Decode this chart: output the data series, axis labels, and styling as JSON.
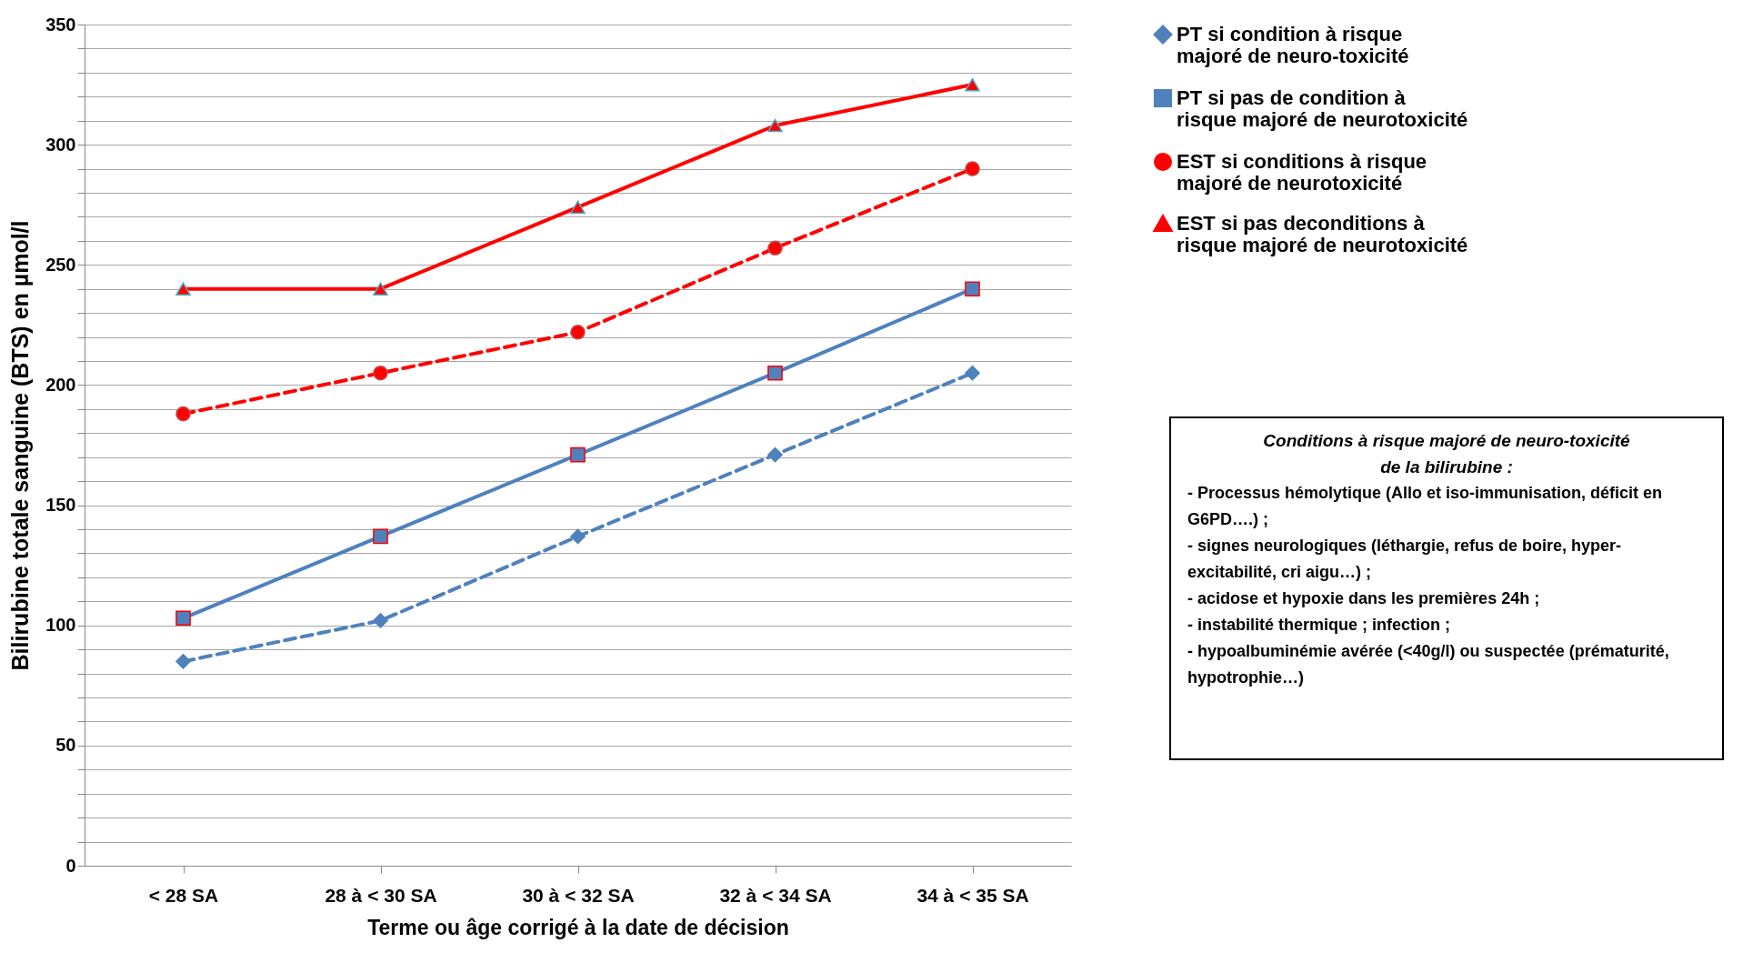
{
  "chart_data": {
    "type": "line",
    "xlabel": "Terme ou âge corrigé à la date de décision",
    "ylabel": "Bilirubine totale sanguine (BTS) en µmol/l",
    "categories": [
      "< 28 SA",
      "28 à < 30 SA",
      "30 à < 32 SA",
      "32 à < 34 SA",
      "34 à < 35 SA"
    ],
    "ylim": [
      0,
      350
    ],
    "yticks": [
      0,
      {
        "value": 10,
        "label": null
      },
      {
        "value": 20,
        "label": null
      },
      {
        "value": 30,
        "label": null
      },
      {
        "value": 40,
        "label": null
      },
      50,
      {
        "value": 60,
        "label": null
      },
      {
        "value": 70,
        "label": null
      },
      {
        "value": 80,
        "label": null
      },
      {
        "value": 90,
        "label": null
      },
      100,
      {
        "value": 110,
        "label": null
      },
      {
        "value": 120,
        "label": null
      },
      {
        "value": 130,
        "label": null
      },
      {
        "value": 140,
        "label": null
      },
      150,
      {
        "value": 160,
        "label": null
      },
      {
        "value": 170,
        "label": null
      },
      {
        "value": 180,
        "label": null
      },
      {
        "value": 190,
        "label": null
      },
      200,
      {
        "value": 210,
        "label": null
      },
      {
        "value": 220,
        "label": null
      },
      {
        "value": 230,
        "label": null
      },
      {
        "value": 240,
        "label": null
      },
      250,
      {
        "value": 260,
        "label": null
      },
      {
        "value": 270,
        "label": null
      },
      {
        "value": 280,
        "label": null
      },
      {
        "value": 290,
        "label": null
      },
      300,
      {
        "value": 310,
        "label": null
      },
      {
        "value": 320,
        "label": null
      },
      {
        "value": 330,
        "label": null
      },
      {
        "value": 340,
        "label": null
      },
      350
    ],
    "grid": "y",
    "legend": "right",
    "series": [
      {
        "name": "PT si condition à risque majoré de neuro-toxicité",
        "color": "#4f81bd",
        "marker": "diamond",
        "line_style": "dashed",
        "values": [
          85,
          102,
          137,
          171,
          205
        ]
      },
      {
        "name": "PT si pas de condition à risque majoré de neurotoxicité",
        "color": "#4f81bd",
        "marker": "square",
        "line_style": "solid",
        "values": [
          103,
          137,
          171,
          205,
          240
        ]
      },
      {
        "name": "EST si conditions à risque majoré de neurotoxicité",
        "color": "#ff0000",
        "marker": "circle",
        "line_style": "dashed",
        "values": [
          188,
          205,
          222,
          257,
          290
        ]
      },
      {
        "name": "EST si pas deconditions à risque majoré de neurotoxicité",
        "color": "#ff0000",
        "marker": "triangle",
        "line_style": "solid",
        "values": [
          240,
          240,
          274,
          308,
          325
        ]
      }
    ],
    "annotations": [
      "Conditions à risque majoré de neuro-toxicité de la bilirubine :",
      "- Processus hémolytique (Allo et iso-immunisation, déficit en G6PD….) ;",
      "- signes neurologiques (léthargie, refus de boire, hyper-excitabilité, cri aigu…) ;",
      "- acidose et hypoxie dans les premières 24h ;",
      "-  instabilité thermique ; infection ;",
      " - hypoalbuminémie avérée (<40g/l) ou suspectée (prématurité, hypotrophie…)"
    ]
  }
}
